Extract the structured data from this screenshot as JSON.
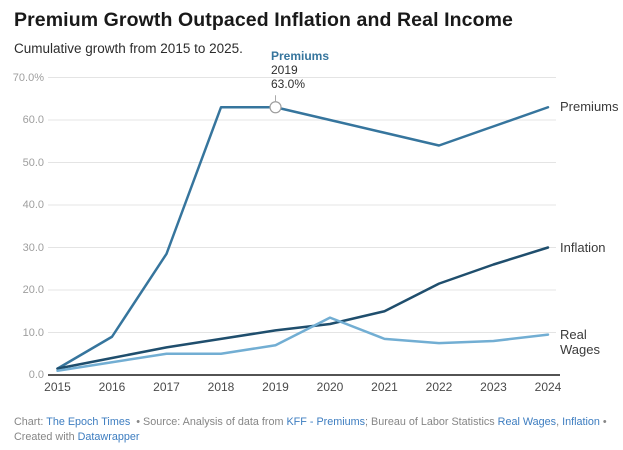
{
  "header": {
    "title": "Premium Growth Outpaced Inflation and Real Income",
    "subtitle": "Cumulative growth from 2015 to 2025."
  },
  "annotation": {
    "series": "Premiums",
    "year": "2019",
    "value": "63.0%"
  },
  "chart_data": {
    "type": "line",
    "x": [
      2015,
      2016,
      2017,
      2018,
      2019,
      2020,
      2021,
      2022,
      2023,
      2024
    ],
    "x_tick_labels": [
      "2015",
      "2016",
      "2017",
      "2018",
      "2019",
      "2020",
      "2021",
      "2022",
      "2023",
      "2024"
    ],
    "series": [
      {
        "name": "Premiums",
        "color": "#36759d",
        "values": [
          1.5,
          9,
          28.5,
          63,
          63,
          60,
          57,
          54,
          58.5,
          63
        ]
      },
      {
        "name": "Inflation",
        "color": "#1f4e6d",
        "values": [
          1.5,
          4,
          6.5,
          8.5,
          10.5,
          12,
          15,
          21.5,
          26,
          30
        ]
      },
      {
        "name": "Real Wages",
        "color": "#72aed3",
        "values": [
          1,
          3,
          5,
          5,
          7,
          13.5,
          8.5,
          7.5,
          8,
          9.5
        ]
      }
    ],
    "ylim": [
      0,
      70
    ],
    "y_ticks": [
      0,
      10,
      20,
      30,
      40,
      50,
      60,
      70
    ],
    "y_tick_labels": [
      "0.0",
      "10.0",
      "20.0",
      "30.0",
      "40.0",
      "50.0",
      "60.0",
      "70.0%"
    ],
    "grid": true,
    "legend_position": "line-end-labels-right",
    "annotation_point": {
      "series_index": 0,
      "x_index": 4,
      "year": "2019",
      "value": "63.0%"
    }
  },
  "colors": {
    "grid": "#e4e4e4",
    "axis": "#1a1a1a",
    "marker_stroke": "#9e9e9e",
    "link": "#3d7dc0",
    "footer_text": "#868686"
  },
  "footer": {
    "lines": [
      [
        {
          "t": "Chart: ",
          "link": false
        },
        {
          "t": "The Epoch Times",
          "link": true
        },
        {
          "t": "  • Source: Analysis of data from ",
          "link": false
        },
        {
          "t": "KFF - Premiums",
          "link": true
        },
        {
          "t": "; Bureau of Labor Statistics ",
          "link": false
        },
        {
          "t": "Real Wages",
          "link": true
        },
        {
          "t": ", ",
          "link": false
        },
        {
          "t": "Inflation",
          "link": true
        },
        {
          "t": " •",
          "link": false
        }
      ],
      [
        {
          "t": "Created with ",
          "link": false
        },
        {
          "t": "Datawrapper",
          "link": true
        }
      ]
    ]
  }
}
